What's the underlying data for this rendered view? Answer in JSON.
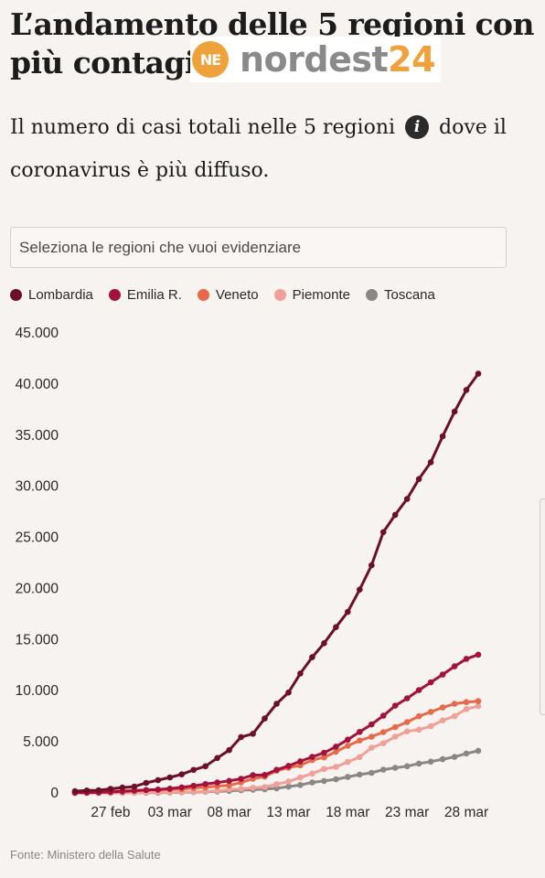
{
  "header": {
    "title": "L’andamento delle 5 regioni con più contagi",
    "logo_word": "nordest",
    "logo_number": "24",
    "logo_mark": "NE"
  },
  "subtitle": {
    "part1": "Il numero di casi totali nelle 5 regioni",
    "info_icon_glyph": "i",
    "part2": "dove il coronavirus è più diffuso."
  },
  "search": {
    "placeholder": "Seleziona le regioni che vuoi evidenziare",
    "value": ""
  },
  "source": "Fonte: Ministero della Salute",
  "icons": {
    "info": "info-icon",
    "legend_marker": "circle-dot-icon"
  },
  "chart_data": {
    "type": "line",
    "title": "",
    "xlabel": "",
    "ylabel": "",
    "x": [
      "24 feb",
      "25 feb",
      "26 feb",
      "27 feb",
      "28 feb",
      "29 feb",
      "01 mar",
      "02 mar",
      "03 mar",
      "04 mar",
      "05 mar",
      "06 mar",
      "07 mar",
      "08 mar",
      "09 mar",
      "10 mar",
      "11 mar",
      "12 mar",
      "13 mar",
      "14 mar",
      "15 mar",
      "16 mar",
      "17 mar",
      "18 mar",
      "19 mar",
      "20 mar",
      "21 mar",
      "22 mar",
      "23 mar",
      "24 mar",
      "25 mar",
      "26 mar",
      "27 mar",
      "28 mar",
      "29 mar"
    ],
    "x_tick_labels": [
      "27 feb",
      "03 mar",
      "08 mar",
      "13 mar",
      "18 mar",
      "23 mar",
      "28 mar"
    ],
    "x_tick_index": [
      3,
      8,
      13,
      18,
      23,
      28,
      33
    ],
    "y_ticks": [
      0,
      5000,
      10000,
      15000,
      20000,
      25000,
      30000,
      35000,
      40000,
      45000
    ],
    "y_tick_labels": [
      "0",
      "5.000",
      "10.000",
      "15.000",
      "20.000",
      "25.000",
      "30.000",
      "35.000",
      "40.000",
      "45.000"
    ],
    "ylim": [
      0,
      45000
    ],
    "grid": false,
    "legend_position": "top-left",
    "series": [
      {
        "name": "Lombardia",
        "color": "#6b0f2a",
        "values": [
          172,
          240,
          258,
          403,
          531,
          615,
          984,
          1254,
          1520,
          1820,
          2251,
          2612,
          3420,
          4189,
          5469,
          5791,
          7280,
          8725,
          9820,
          11685,
          13272,
          14649,
          16220,
          17713,
          19884,
          22264,
          25515,
          27206,
          28761,
          30703,
          32346,
          34889,
          37298,
          39415,
          41007
        ]
      },
      {
        "name": "Emilia R.",
        "color": "#a3123a",
        "values": [
          18,
          26,
          47,
          97,
          145,
          217,
          285,
          335,
          420,
          544,
          698,
          870,
          1022,
          1180,
          1386,
          1739,
          1758,
          2263,
          2644,
          3093,
          3522,
          3931,
          4525,
          5214,
          5968,
          6705,
          7555,
          8535,
          9254,
          10054,
          10816,
          11588,
          12383,
          13119,
          13531
        ]
      },
      {
        "name": "Veneto",
        "color": "#e8694a",
        "values": [
          43,
          71,
          111,
          151,
          191,
          263,
          273,
          307,
          360,
          380,
          488,
          543,
          670,
          744,
          1023,
          1384,
          1595,
          2172,
          2473,
          2704,
          3214,
          3484,
          4031,
          4617,
          5122,
          5505,
          5948,
          6442,
          6935,
          7497,
          7930,
          8358,
          8724,
          8888,
          8983
        ]
      },
      {
        "name": "Piemonte",
        "color": "#f0a097",
        "values": [
          3,
          3,
          3,
          3,
          11,
          11,
          49,
          51,
          56,
          82,
          108,
          143,
          207,
          350,
          401,
          501,
          580,
          840,
          1111,
          1516,
          1897,
          2341,
          2552,
          3031,
          3506,
          4420,
          4861,
          5515,
          6024,
          6193,
          6534,
          7092,
          7513,
          8206,
          8500
        ]
      },
      {
        "name": "Toscana",
        "color": "#8b8785",
        "values": [
          2,
          2,
          2,
          2,
          11,
          19,
          19,
          19,
          38,
          61,
          79,
          113,
          146,
          208,
          264,
          320,
          364,
          454,
          615,
          781,
          1025,
          1170,
          1330,
          1563,
          1795,
          1970,
          2277,
          2461,
          2612,
          2875,
          3056,
          3300,
          3528,
          3860,
          4120
        ]
      }
    ]
  }
}
